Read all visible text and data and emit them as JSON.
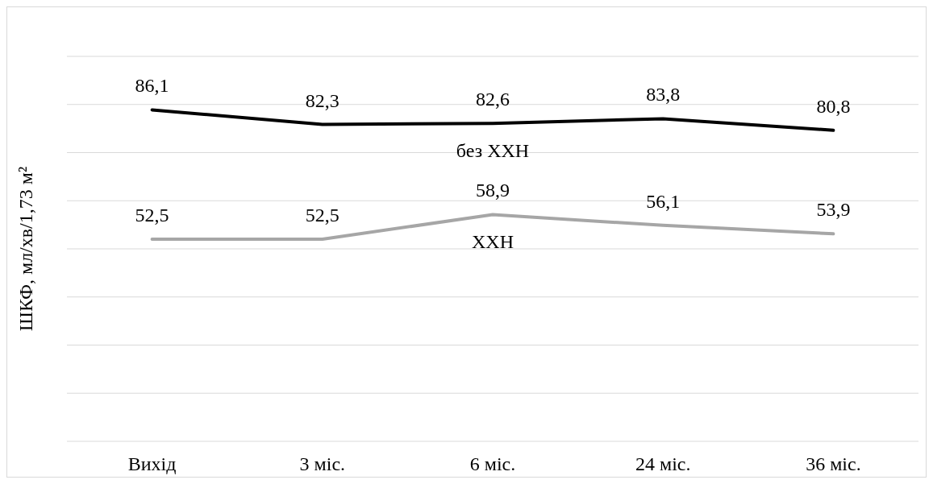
{
  "chart_data": {
    "type": "line",
    "ylabel": "ШКФ, мл/хв/1,73 м²",
    "categories": [
      "Вихід",
      "3 міс.",
      "6 міс.",
      "24 міс.",
      "36 міс."
    ],
    "ylim": [
      0,
      100
    ],
    "yticks": [
      {
        "value": 12.5,
        "label": null
      },
      {
        "value": 25,
        "label": null
      },
      {
        "value": 37.5,
        "label": null
      },
      {
        "value": 50,
        "label": null
      },
      {
        "value": 62.5,
        "label": null
      },
      {
        "value": 75,
        "label": null
      },
      {
        "value": 87.5,
        "label": null
      },
      {
        "value": 100,
        "label": null
      }
    ],
    "tick_labels": "x",
    "grid": "y",
    "marker": "none",
    "line_style": "solid",
    "series": [
      {
        "name": "ХХН",
        "color": "#a6a6a6",
        "values": [
          52.5,
          52.5,
          58.9,
          56.1,
          53.9
        ],
        "value_labels": [
          "52,5",
          "52,5",
          "58,9",
          "56,1",
          "53,9"
        ]
      },
      {
        "name": "без ХХН",
        "color": "#000000",
        "values": [
          86.1,
          82.3,
          82.6,
          83.8,
          80.8
        ],
        "value_labels": [
          "86,1",
          "82,3",
          "82,6",
          "83,8",
          "80,8"
        ]
      }
    ]
  }
}
